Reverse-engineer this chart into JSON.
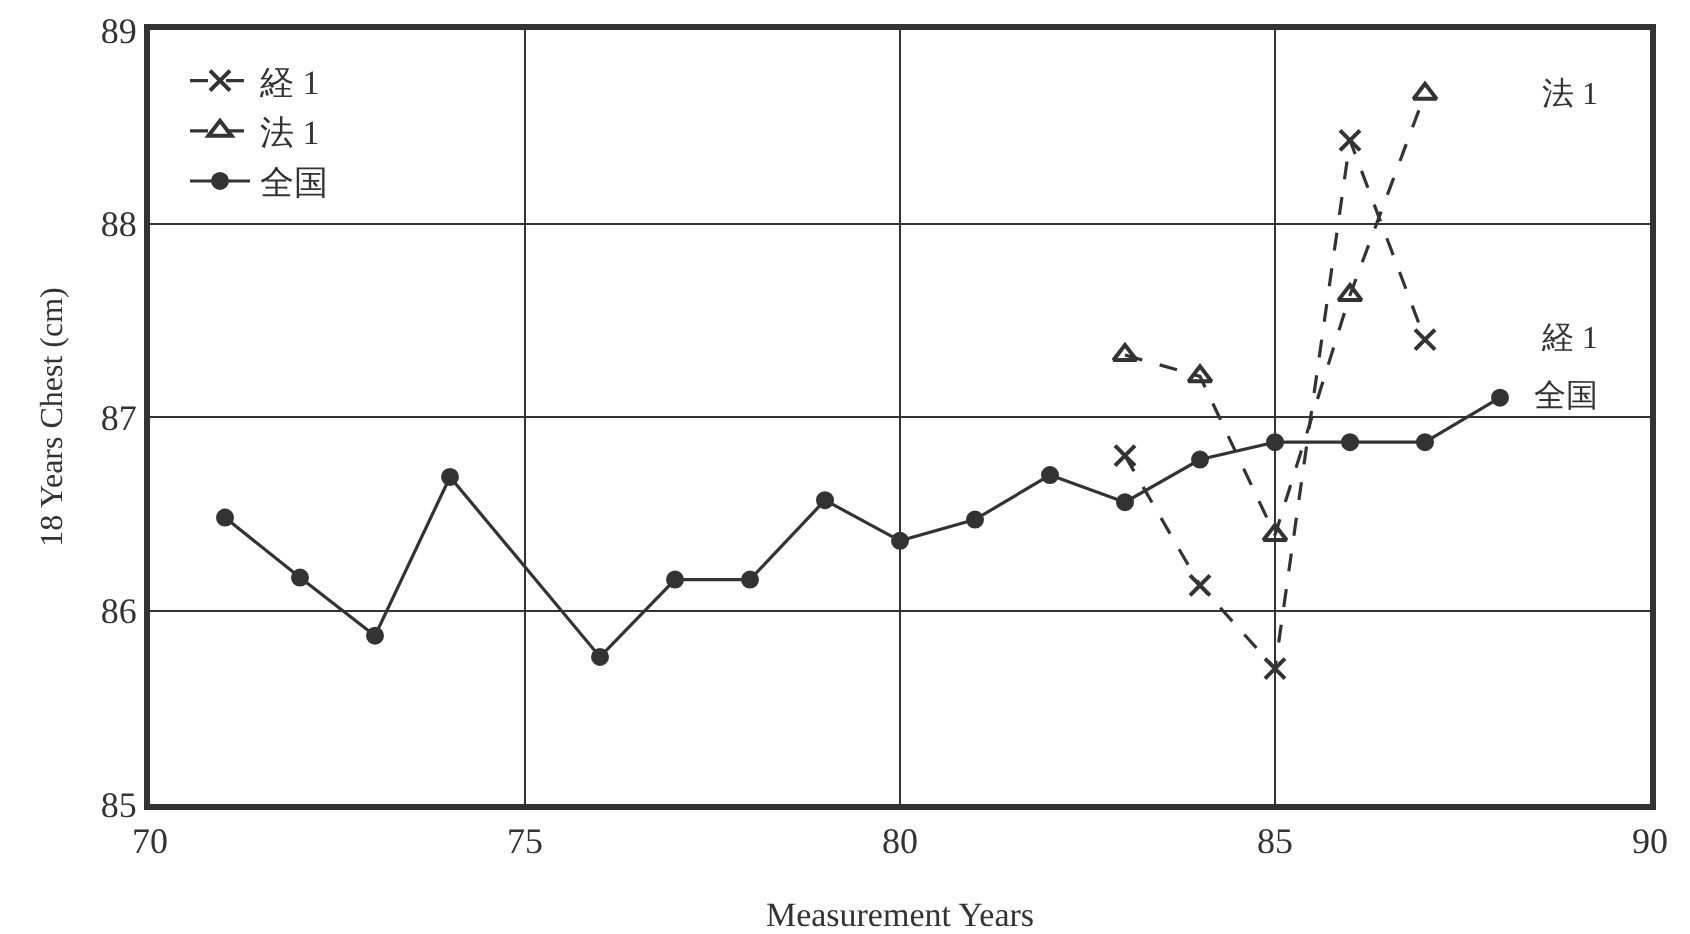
{
  "chart_data": {
    "type": "line",
    "xlabel": "Measurement Years",
    "ylabel": "18 Years Chest (cm)",
    "xlim": [
      70,
      90
    ],
    "xticks": [
      70,
      75,
      80,
      85,
      90
    ],
    "ylim": [
      85,
      89
    ],
    "yticks": [
      85,
      86,
      87,
      88,
      89
    ],
    "grid": true,
    "legend": "top left",
    "series": [
      {
        "name": "経 1",
        "color": "#333333",
        "marker": "cross",
        "line_style": "dashed",
        "x": [
          83,
          84,
          85,
          86,
          87
        ],
        "values": [
          86.8,
          86.13,
          85.7,
          88.43,
          87.4
        ]
      },
      {
        "name": "法 1",
        "color": "#333333",
        "marker": "triangle",
        "line_style": "dashed",
        "x": [
          83,
          84,
          85,
          86,
          87
        ],
        "values": [
          87.32,
          87.21,
          86.39,
          87.63,
          88.67
        ]
      },
      {
        "name": "全国",
        "color": "#333333",
        "marker": "circle",
        "line_style": "solid",
        "x": [
          71,
          72,
          73,
          74,
          76,
          77,
          78,
          79,
          80,
          81,
          82,
          83,
          84,
          85,
          86,
          87,
          88
        ],
        "values": [
          86.48,
          86.17,
          85.87,
          86.69,
          85.76,
          86.16,
          86.16,
          86.57,
          86.36,
          86.47,
          86.7,
          86.56,
          86.78,
          86.87,
          86.87,
          86.87,
          87.1
        ]
      }
    ]
  }
}
